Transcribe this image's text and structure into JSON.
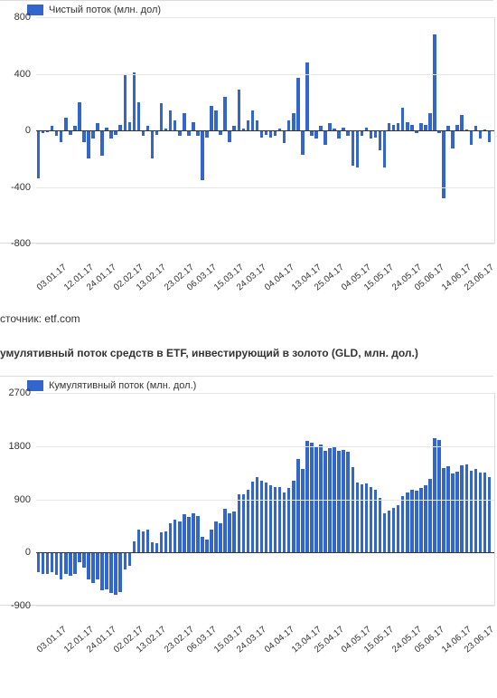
{
  "chart1": {
    "type": "bar",
    "legend_label": "Чистый поток (млн. дол)",
    "bar_color": "#3366cc",
    "background_color": "#ffffff",
    "grid_color": "#e6e6e6",
    "border_color": "#dcdcdc",
    "font_size": 11,
    "ymin": -800,
    "ymax": 800,
    "ytick_step": 400,
    "yticks": [
      800,
      400,
      0,
      -400,
      -800
    ],
    "x_labels": [
      "03.01.17",
      "12.01.17",
      "24.01.17",
      "02.02.17",
      "13.02.17",
      "23.02.17",
      "06.03.17",
      "15.03.17",
      "24.03.17",
      "04.04.17",
      "13.04.17",
      "25.04.17",
      "04.05.17",
      "15.05.17",
      "24.05.17",
      "05.06.17",
      "14.06.17",
      "23.06.17"
    ],
    "values": [
      -340,
      -20,
      -10,
      30,
      -40,
      -80,
      90,
      -30,
      30,
      200,
      -80,
      -200,
      -60,
      50,
      -180,
      20,
      -60,
      -30,
      40,
      390,
      60,
      410,
      200,
      -40,
      30,
      -200,
      -30,
      190,
      10,
      140,
      70,
      -40,
      120,
      -40,
      60,
      -40,
      -350,
      -50,
      170,
      140,
      -30,
      240,
      -80,
      30,
      290,
      10,
      70,
      140,
      70,
      -50,
      -30,
      -50,
      -40,
      10,
      -90,
      70,
      120,
      370,
      -170,
      480,
      -40,
      -60,
      30,
      -100,
      50,
      10,
      -60,
      20,
      -40,
      -250,
      -260,
      -40,
      20,
      -60,
      -50,
      -140,
      -260,
      50,
      40,
      50,
      160,
      60,
      40,
      -20,
      50,
      40,
      120,
      680,
      -20,
      -480,
      30,
      -130,
      40,
      110,
      4,
      -100,
      30,
      -60,
      4,
      -80
    ]
  },
  "source_text": "сточник: etf.com",
  "chart2_title": "умулятивный поток средств в ETF, инвестирующий в золото (GLD, млн. дол.)",
  "chart2": {
    "type": "bar",
    "legend_label": "Кумулятивный поток (млн. дол.)",
    "bar_color": "#3366cc",
    "background_color": "#ffffff",
    "grid_color": "#e6e6e6",
    "border_color": "#dcdcdc",
    "font_size": 11,
    "ymin": -900,
    "ymax": 2700,
    "ytick_step": 900,
    "yticks": [
      2700,
      1800,
      900,
      0,
      -900
    ],
    "x_labels": [
      "03.01.17",
      "12.01.17",
      "24.01.17",
      "02.02.17",
      "13.02.17",
      "23.02.17",
      "06.03.17",
      "15.03.17",
      "24.03.17",
      "04.04.17",
      "13.04.17",
      "25.04.17",
      "04.05.17",
      "15.05.17",
      "24.05.17",
      "05.06.17",
      "14.06.17",
      "23.06.17"
    ],
    "values": [
      -340,
      -360,
      -370,
      -340,
      -380,
      -460,
      -370,
      -400,
      -370,
      -170,
      -250,
      -450,
      -510,
      -460,
      -640,
      -620,
      -680,
      -710,
      -670,
      -280,
      -220,
      190,
      390,
      350,
      380,
      180,
      150,
      340,
      350,
      490,
      560,
      520,
      640,
      600,
      660,
      620,
      270,
      220,
      390,
      530,
      500,
      740,
      660,
      690,
      980,
      990,
      1060,
      1200,
      1270,
      1220,
      1190,
      1140,
      1100,
      1110,
      1020,
      1090,
      1210,
      1580,
      1410,
      1890,
      1850,
      1790,
      1820,
      1720,
      1770,
      1780,
      1720,
      1740,
      1700,
      1450,
      1190,
      1150,
      1170,
      1110,
      1060,
      920,
      660,
      710,
      750,
      800,
      960,
      1020,
      1060,
      1040,
      1090,
      1130,
      1250,
      1930,
      1910,
      1430,
      1460,
      1330,
      1370,
      1480,
      1484,
      1384,
      1414,
      1354,
      1358,
      1278
    ]
  }
}
